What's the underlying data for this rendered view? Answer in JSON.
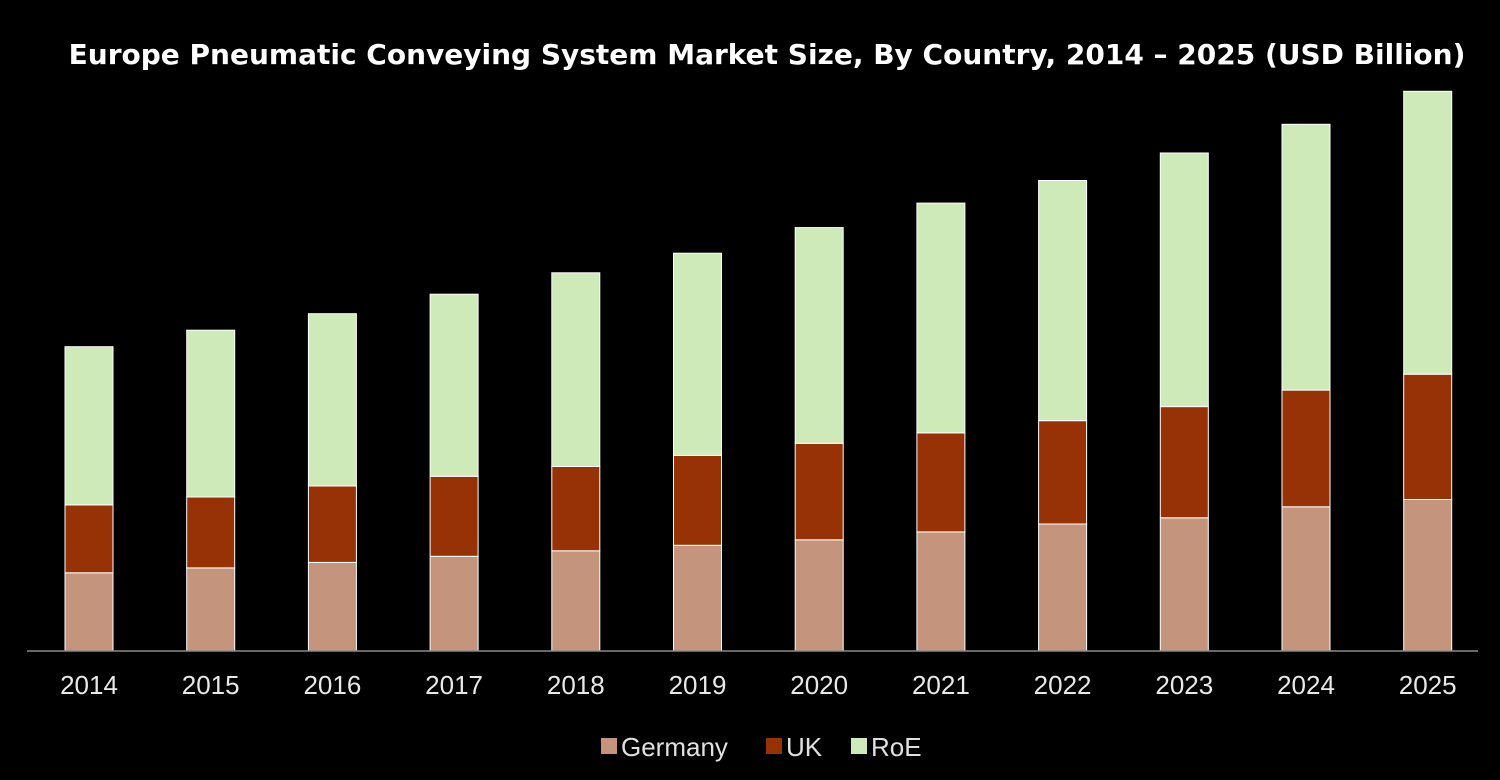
{
  "chart_data": {
    "type": "bar",
    "stacked": true,
    "title": "Europe Pneumatic Conveying System Market Size, By Country, 2014 – 2025 (USD Billion)",
    "xlabel": "",
    "ylabel": "",
    "ylim": [
      0,
      10
    ],
    "grid": false,
    "legend_position": "bottom",
    "categories": [
      "2014",
      "2015",
      "2016",
      "2017",
      "2018",
      "2019",
      "2020",
      "2021",
      "2022",
      "2023",
      "2024",
      "2025"
    ],
    "series": [
      {
        "name": "Germany",
        "color": "#c4947c",
        "values": [
          1.28,
          1.36,
          1.45,
          1.55,
          1.64,
          1.73,
          1.82,
          1.95,
          2.08,
          2.18,
          2.36,
          2.48
        ]
      },
      {
        "name": "UK",
        "color": "#963205",
        "values": [
          1.11,
          1.16,
          1.25,
          1.31,
          1.38,
          1.47,
          1.58,
          1.62,
          1.69,
          1.82,
          1.91,
          2.05
        ]
      },
      {
        "name": "RoE",
        "color": "#cdeab8",
        "values": [
          2.59,
          2.73,
          2.82,
          2.98,
          3.17,
          3.31,
          3.53,
          3.76,
          3.93,
          4.15,
          4.35,
          4.63
        ]
      }
    ]
  }
}
